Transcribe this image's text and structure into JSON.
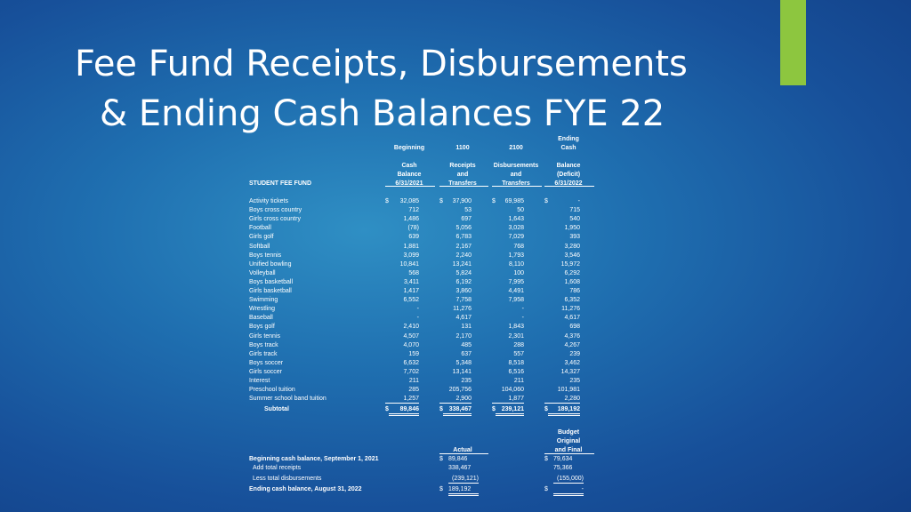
{
  "slide": {
    "title_line1": "Fee Fund Receipts, Disbursements",
    "title_line2": "& Ending Cash Balances FYE 22",
    "accent_color": "#8dc63f"
  },
  "table": {
    "fund_label": "STUDENT FEE FUND",
    "headers": {
      "beginning": [
        "Beginning",
        "",
        "Cash",
        "Balance",
        "6/31/2021"
      ],
      "receipts": [
        "1100",
        "",
        "Receipts",
        "and",
        "Transfers"
      ],
      "disbursements": [
        "2100",
        "",
        "Disbursements",
        "and",
        "Transfers"
      ],
      "ending": [
        "Ending",
        "Cash",
        "",
        "Balance",
        "(Deficit)",
        "6/31/2022"
      ]
    },
    "rows": [
      {
        "name": "Activity tickets",
        "beg": "32,085",
        "rec": "37,900",
        "dis": "69,985",
        "end": "-"
      },
      {
        "name": "Boys cross country",
        "beg": "712",
        "rec": "53",
        "dis": "50",
        "end": "715"
      },
      {
        "name": "Girls cross country",
        "beg": "1,486",
        "rec": "697",
        "dis": "1,643",
        "end": "540"
      },
      {
        "name": "Football",
        "beg": "(78)",
        "rec": "5,056",
        "dis": "3,028",
        "end": "1,950"
      },
      {
        "name": "Girls golf",
        "beg": "639",
        "rec": "6,783",
        "dis": "7,029",
        "end": "393"
      },
      {
        "name": "Softball",
        "beg": "1,881",
        "rec": "2,167",
        "dis": "768",
        "end": "3,280"
      },
      {
        "name": "Boys tennis",
        "beg": "3,099",
        "rec": "2,240",
        "dis": "1,793",
        "end": "3,546"
      },
      {
        "name": "Unified bowling",
        "beg": "10,841",
        "rec": "13,241",
        "dis": "8,110",
        "end": "15,972"
      },
      {
        "name": "Volleyball",
        "beg": "568",
        "rec": "5,824",
        "dis": "100",
        "end": "6,292"
      },
      {
        "name": "Boys basketball",
        "beg": "3,411",
        "rec": "6,192",
        "dis": "7,995",
        "end": "1,608"
      },
      {
        "name": "Girls basketball",
        "beg": "1,417",
        "rec": "3,860",
        "dis": "4,491",
        "end": "786"
      },
      {
        "name": "Swimming",
        "beg": "6,552",
        "rec": "7,758",
        "dis": "7,958",
        "end": "6,352"
      },
      {
        "name": "Wrestling",
        "beg": "-",
        "rec": "11,276",
        "dis": "-",
        "end": "11,276"
      },
      {
        "name": "Baseball",
        "beg": "-",
        "rec": "4,617",
        "dis": "-",
        "end": "4,617"
      },
      {
        "name": "Boys golf",
        "beg": "2,410",
        "rec": "131",
        "dis": "1,843",
        "end": "698"
      },
      {
        "name": "Girls tennis",
        "beg": "4,507",
        "rec": "2,170",
        "dis": "2,301",
        "end": "4,376"
      },
      {
        "name": "Boys track",
        "beg": "4,070",
        "rec": "485",
        "dis": "288",
        "end": "4,267"
      },
      {
        "name": "Girls track",
        "beg": "159",
        "rec": "637",
        "dis": "557",
        "end": "239"
      },
      {
        "name": "Boys soccer",
        "beg": "6,632",
        "rec": "5,348",
        "dis": "8,518",
        "end": "3,462"
      },
      {
        "name": "Girls soccer",
        "beg": "7,702",
        "rec": "13,141",
        "dis": "6,516",
        "end": "14,327"
      },
      {
        "name": "Interest",
        "beg": "211",
        "rec": "235",
        "dis": "211",
        "end": "235"
      },
      {
        "name": "Preschool tuition",
        "beg": "285",
        "rec": "205,756",
        "dis": "104,060",
        "end": "101,981"
      },
      {
        "name": "Summer school band tuition",
        "beg": "1,257",
        "rec": "2,900",
        "dis": "1,877",
        "end": "2,280"
      }
    ],
    "subtotal": {
      "label": "Subtotal",
      "beg": "89,846",
      "rec": "338,467",
      "dis": "239,121",
      "end": "189,192"
    },
    "currency": "$"
  },
  "summary": {
    "actual_header": "Actual",
    "budget_header": [
      "Budget",
      "Original",
      "and Final"
    ],
    "rows": [
      {
        "label": "Beginning cash balance, September 1, 2021",
        "actual": "89,846",
        "budget": "79,634",
        "bold": true,
        "dollar": true
      },
      {
        "label": "Add total receipts",
        "actual": "338,467",
        "budget": "75,366",
        "bold": false,
        "dollar": false
      },
      {
        "label": "Less total disbursements",
        "actual": "(239,121)",
        "budget": "(155,000)",
        "bold": false,
        "dollar": false
      },
      {
        "label": "Ending cash balance, August 31, 2022",
        "actual": "189,192",
        "budget": "-",
        "bold": true,
        "dollar": true
      }
    ]
  }
}
